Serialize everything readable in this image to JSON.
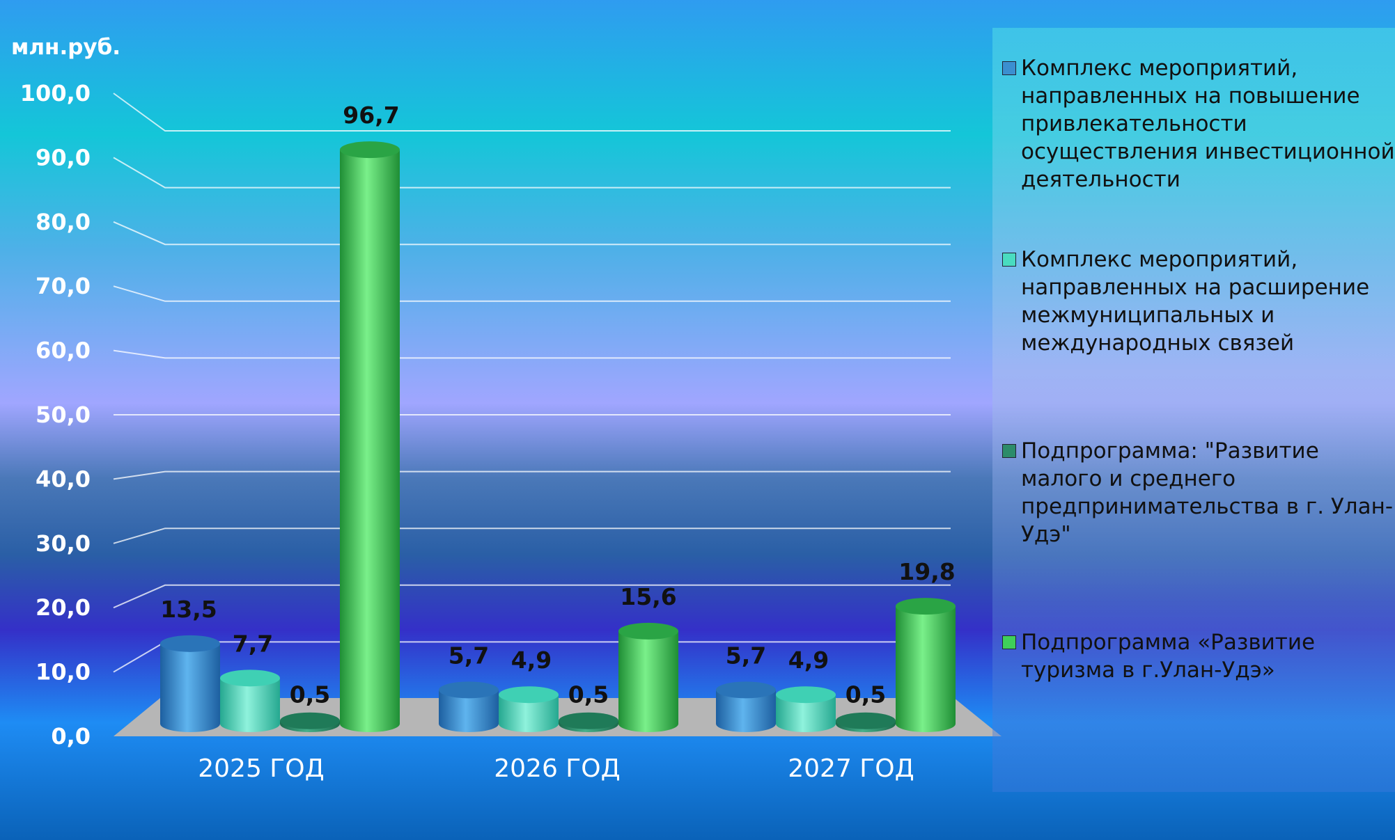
{
  "unit_label": "млн.руб.",
  "colors": {
    "series1": "#3b8fd0",
    "series2": "#49dcc0",
    "series3": "#2c8c6a",
    "series4": "#3fcf5a",
    "axis_text": "#ffffff",
    "value_text": "#111111"
  },
  "chart_data": {
    "type": "bar",
    "categories": [
      "2025 ГОД",
      "2026 ГОД",
      "2027 ГОД"
    ],
    "ylabel": "млн.руб.",
    "ylim": [
      0,
      100
    ],
    "y_ticks": [
      "0,0",
      "10,0",
      "20,0",
      "30,0",
      "40,0",
      "50,0",
      "60,0",
      "70,0",
      "80,0",
      "90,0",
      "100,0"
    ],
    "grid": true,
    "legend_position": "right",
    "series": [
      {
        "name": "Комплекс мероприятий, направленных на повышение привлекательности осуществления инвестиционной деятельности",
        "values": [
          13.5,
          5.7,
          5.7
        ],
        "labels": [
          "13,5",
          "5,7",
          "5,7"
        ]
      },
      {
        "name": "Комплекс мероприятий, направленных на расширение межмуниципальных и международных связей",
        "values": [
          7.7,
          4.9,
          4.9
        ],
        "labels": [
          "7,7",
          "4,9",
          "4,9"
        ]
      },
      {
        "name": "Подпрограмма: \"Развитие малого и среднего предпринимательства в г. Улан-Удэ\"",
        "values": [
          0.5,
          0.5,
          0.5
        ],
        "labels": [
          "0,5",
          "0,5",
          "0,5"
        ]
      },
      {
        "name": "Подпрограмма «Развитие туризма в г.Улан-Удэ»",
        "values": [
          96.7,
          15.6,
          19.8
        ],
        "labels": [
          "96,7",
          "15,6",
          "19,8"
        ]
      }
    ]
  }
}
